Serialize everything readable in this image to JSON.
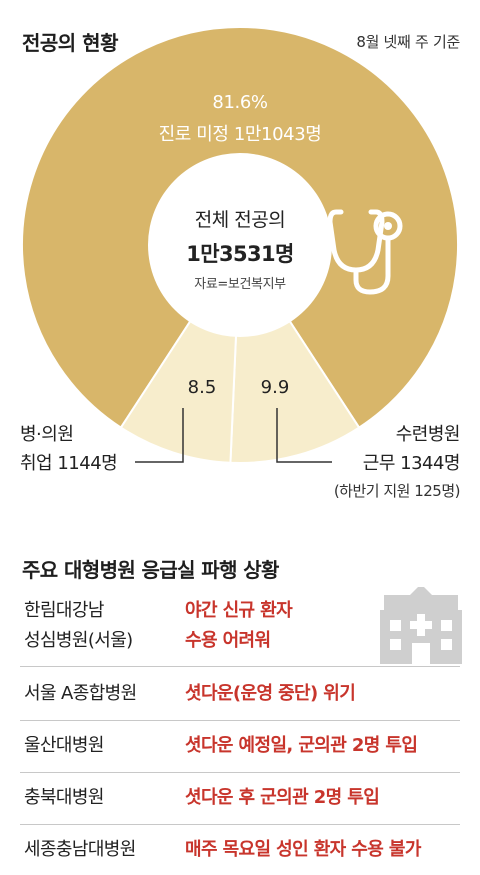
{
  "header": {
    "title": "전공의 현황",
    "date_note": "8월 넷째 주 기준"
  },
  "colors": {
    "main_slice": "#d8b66a",
    "minor_slice": "#f7edcc",
    "status_red": "#c8352c",
    "icon_gray": "#cfcfcf"
  },
  "chart_data": {
    "type": "pie",
    "donut": true,
    "center": {
      "title": "전체 전공의",
      "total": "1만3531명",
      "source": "자료=보건복지부"
    },
    "slices": [
      {
        "pct": 81.6,
        "pct_label": "81.6%",
        "desc": "진로 미정 1만1043명",
        "color": "#d8b66a"
      },
      {
        "pct": 8.5,
        "pct_label": "8.5",
        "line1": "병·의원",
        "line2": "취업 1144명",
        "color": "#f7edcc"
      },
      {
        "pct": 9.9,
        "pct_label": "9.9",
        "line1": "수련병원",
        "line2": "근무 1344명",
        "note": "(하반기 지원 125명)",
        "color": "#f7edcc"
      }
    ],
    "icon": "stethoscope-icon"
  },
  "section2": {
    "title": "주요 대형병원 응급실 파행 상황",
    "icon": "hospital-building-icon",
    "rows": [
      {
        "hospital_line1": "한림대강남",
        "hospital_line2": "성심병원(서울)",
        "status_line1": "야간 신규 환자",
        "status_line2": "수용 어려워"
      },
      {
        "hospital_line1": "서울 A종합병원",
        "status_line1": "셧다운(운영 중단) 위기"
      },
      {
        "hospital_line1": "울산대병원",
        "status_line1": "셧다운 예정일, 군의관 2명 투입"
      },
      {
        "hospital_line1": "충북대병원",
        "status_line1": "셧다운 후 군의관 2명 투입"
      },
      {
        "hospital_line1": "세종충남대병원",
        "status_line1": "매주 목요일 성인 환자 수용 불가"
      }
    ]
  }
}
